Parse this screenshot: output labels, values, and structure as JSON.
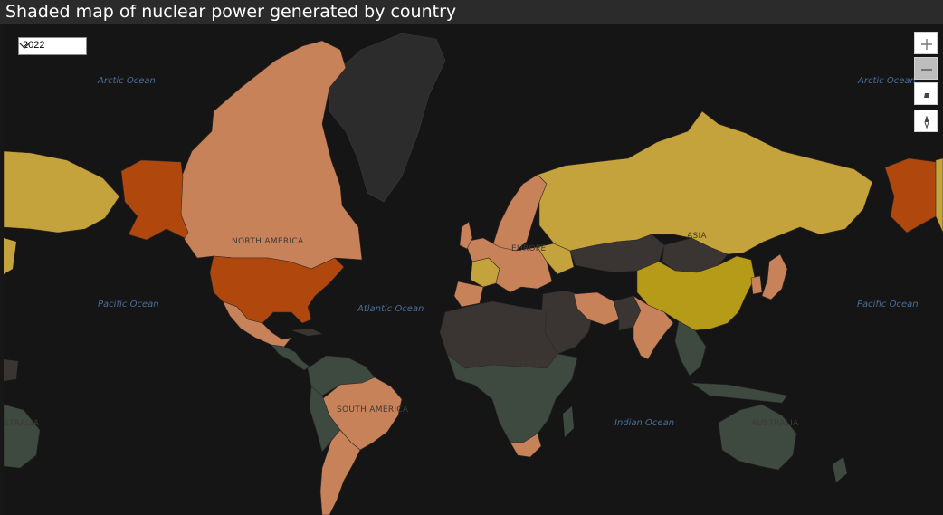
{
  "header": {
    "title": "Shaded map of nuclear power generated by country"
  },
  "filter": {
    "year": "2022"
  },
  "controls": {
    "zoom_in": "+",
    "zoom_out": "−"
  },
  "labels": {
    "oceans": [
      "Arctic Ocean",
      "Arctic Ocean",
      "Pacific Ocean",
      "Atlantic Ocean",
      "Pacific Ocean",
      "Indian Ocean"
    ],
    "continents": [
      "NORTH AMERICA",
      "EUROPE",
      "ASIA",
      "AFRICA",
      "SOUTH AMERICA",
      "AUSTRALIA",
      "STRALIA"
    ]
  },
  "colors": {
    "very_high": "#b0480e",
    "high": "#c4a23c",
    "high_alt": "#b59b18",
    "medium": "#c7825a",
    "low": "#4a3a36",
    "none_dark": "#3e4a40",
    "none": "#2f3331",
    "ocean": "#151515"
  }
}
